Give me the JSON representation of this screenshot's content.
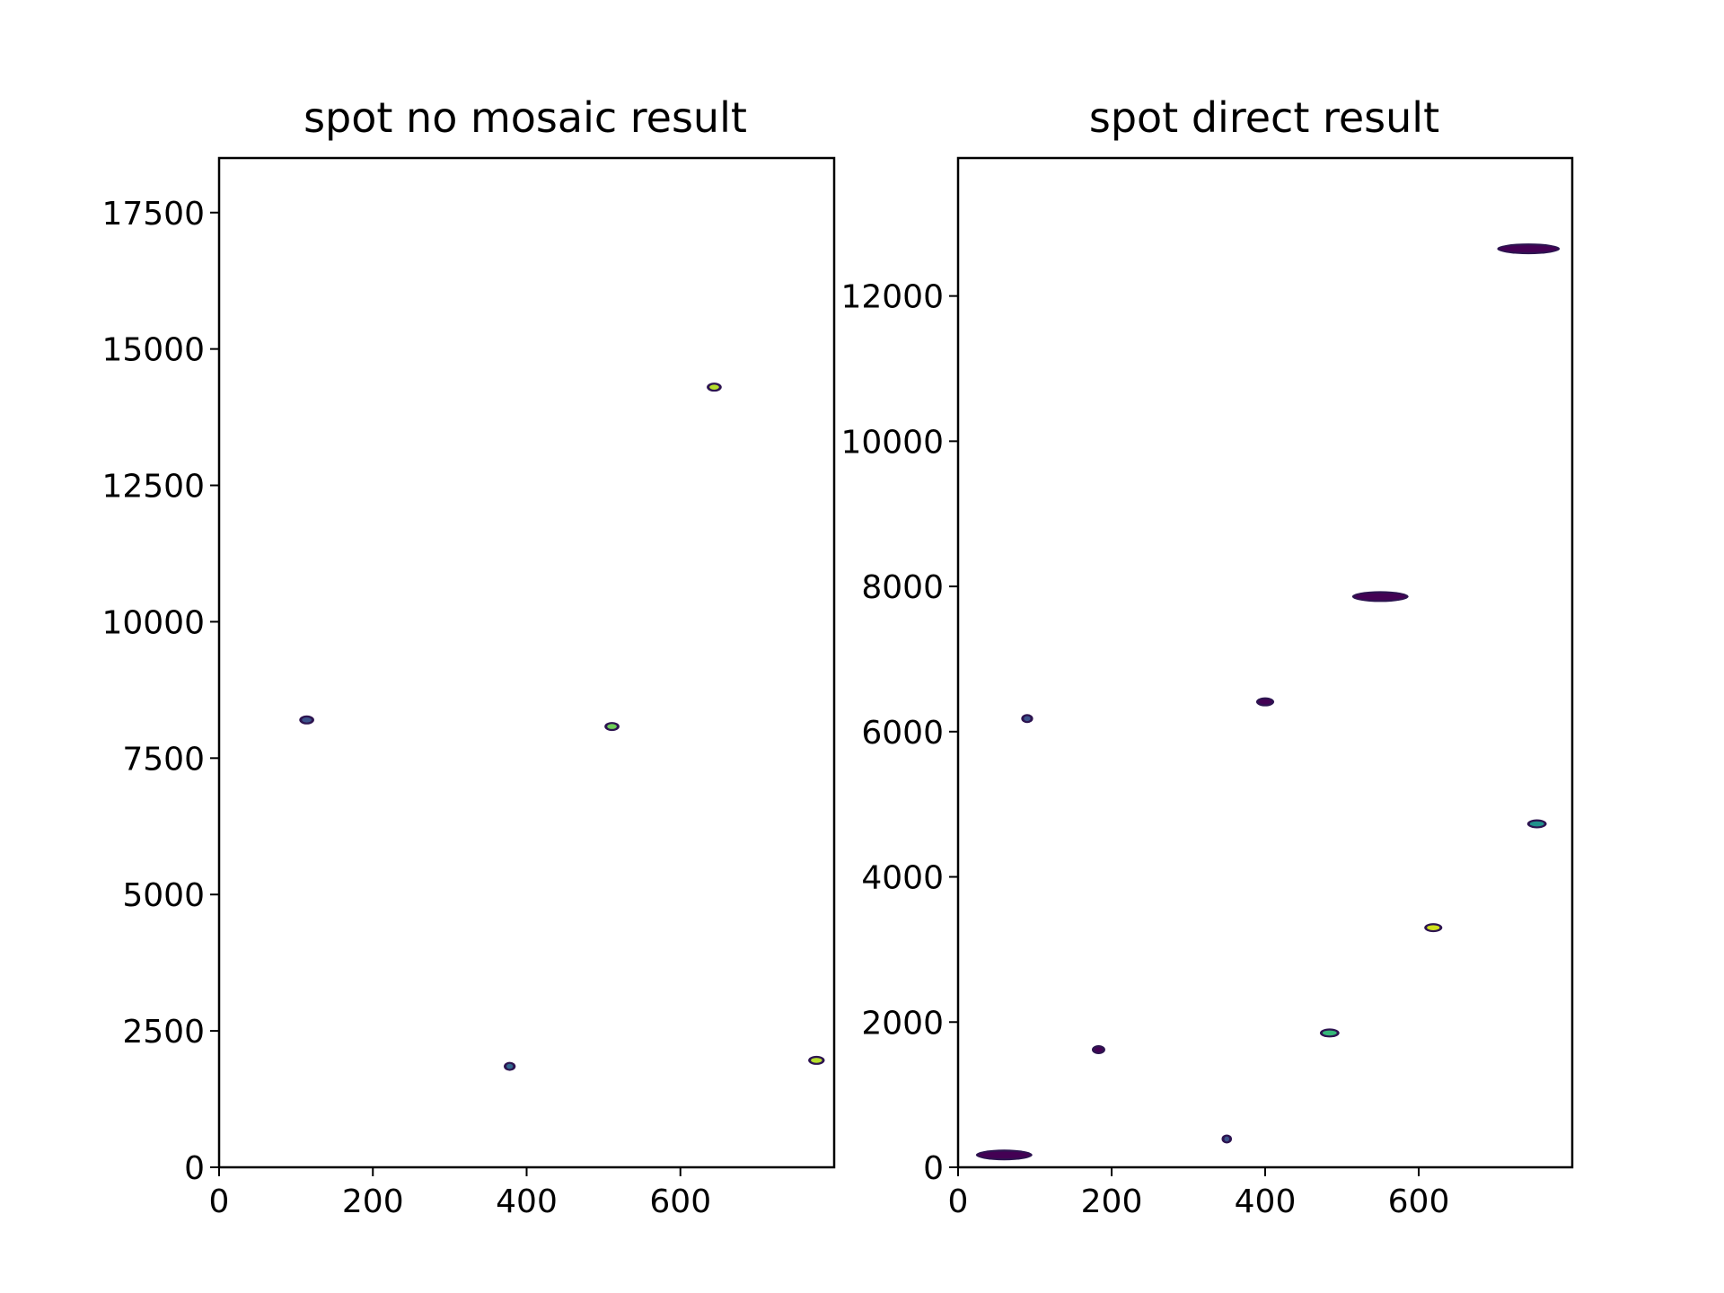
{
  "colors": {
    "axis": "#000000",
    "background": "#ffffff",
    "colormap": "viridis"
  },
  "chart_data": [
    {
      "type": "scatter",
      "title": "spot no mosaic result",
      "xlim": [
        0,
        800
      ],
      "ylim": [
        0,
        18500
      ],
      "xticks": [
        "0",
        "200",
        "400",
        "600"
      ],
      "yticks": [
        "0",
        "2500",
        "5000",
        "7500",
        "10000",
        "12500",
        "15000",
        "17500"
      ],
      "grid": false,
      "legend": "none",
      "points": [
        {
          "x": 114,
          "y": 8200,
          "width": 16,
          "color": "#3b528b"
        },
        {
          "x": 378,
          "y": 1850,
          "width": 12,
          "color": "#31688e"
        },
        {
          "x": 511,
          "y": 8080,
          "width": 16,
          "color": "#6ece58"
        },
        {
          "x": 644,
          "y": 14300,
          "width": 16,
          "color": "#b5de2b"
        },
        {
          "x": 777,
          "y": 1960,
          "width": 18,
          "color": "#b5de2b"
        }
      ]
    },
    {
      "type": "scatter",
      "title": "spot direct result",
      "xlim": [
        0,
        800
      ],
      "ylim": [
        0,
        13900
      ],
      "xticks": [
        "0",
        "200",
        "400",
        "600"
      ],
      "yticks": [
        "0",
        "2000",
        "4000",
        "6000",
        "8000",
        "10000",
        "12000"
      ],
      "grid": false,
      "legend": "none",
      "points": [
        {
          "x": 60,
          "y": 170,
          "width": 70,
          "color": "#440154"
        },
        {
          "x": 90,
          "y": 6180,
          "width": 12,
          "color": "#3b528b"
        },
        {
          "x": 183,
          "y": 1620,
          "width": 14,
          "color": "#440154"
        },
        {
          "x": 350,
          "y": 390,
          "width": 10,
          "color": "#3b528b"
        },
        {
          "x": 400,
          "y": 6410,
          "width": 20,
          "color": "#440154"
        },
        {
          "x": 484,
          "y": 1850,
          "width": 22,
          "color": "#35b779"
        },
        {
          "x": 550,
          "y": 7860,
          "width": 70,
          "color": "#440154"
        },
        {
          "x": 619,
          "y": 3300,
          "width": 20,
          "color": "#d0e11c"
        },
        {
          "x": 754,
          "y": 4730,
          "width": 22,
          "color": "#21918c"
        },
        {
          "x": 743,
          "y": 12650,
          "width": 78,
          "color": "#440154"
        }
      ]
    }
  ]
}
